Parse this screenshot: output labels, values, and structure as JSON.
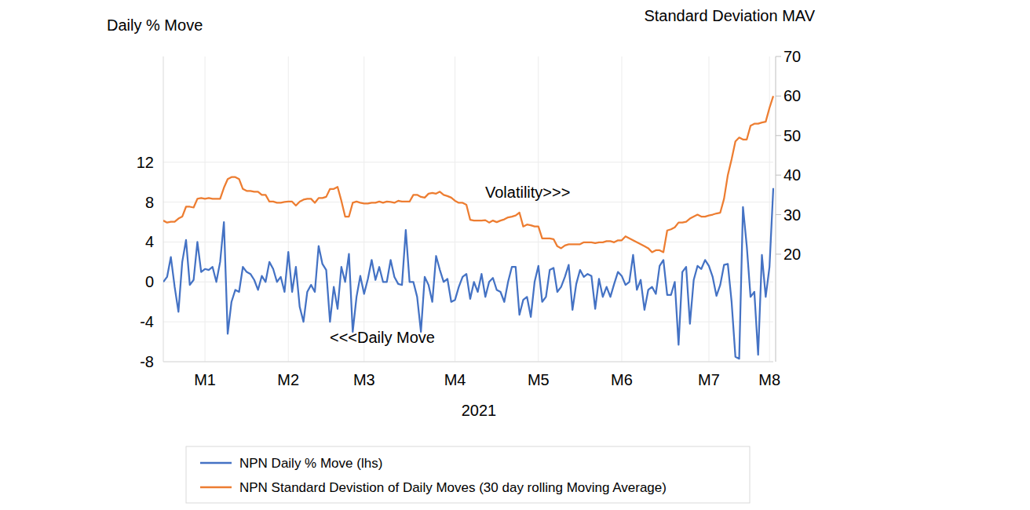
{
  "chart_data": {
    "type": "line",
    "y_label": "Daily % Move",
    "y2_label": "Standard Deviation MAV",
    "x_label": "2021",
    "annotations": [
      {
        "text": "Volatility>>>"
      },
      {
        "text": "<<<Daily Move"
      }
    ],
    "categories": [
      null,
      null,
      null,
      null,
      null,
      null,
      null,
      null,
      null,
      null,
      null,
      "M1",
      null,
      null,
      null,
      null,
      null,
      null,
      null,
      null,
      null,
      null,
      null,
      null,
      null,
      null,
      null,
      null,
      null,
      null,
      null,
      null,
      null,
      "M2",
      null,
      null,
      null,
      null,
      null,
      null,
      null,
      null,
      null,
      null,
      null,
      null,
      null,
      null,
      null,
      null,
      null,
      null,
      null,
      "M3",
      null,
      null,
      null,
      null,
      null,
      null,
      null,
      null,
      null,
      null,
      null,
      null,
      null,
      null,
      null,
      null,
      null,
      null,
      null,
      null,
      null,
      null,
      null,
      "M4",
      null,
      null,
      null,
      null,
      null,
      null,
      null,
      null,
      null,
      null,
      null,
      null,
      null,
      null,
      null,
      null,
      null,
      null,
      null,
      null,
      null,
      "M5",
      null,
      null,
      null,
      null,
      null,
      null,
      null,
      null,
      null,
      null,
      null,
      null,
      null,
      null,
      null,
      null,
      null,
      null,
      null,
      null,
      null,
      "M6",
      null,
      null,
      null,
      null,
      null,
      null,
      null,
      null,
      null,
      null,
      null,
      null,
      null,
      null,
      null,
      null,
      null,
      null,
      null,
      null,
      null,
      null,
      "M7",
      null,
      null,
      null,
      null,
      null,
      null,
      null,
      null,
      null,
      null,
      null,
      null,
      null,
      null,
      null,
      "M8",
      null
    ],
    "series": [
      {
        "name": "NPN Daily % Move (lhs)",
        "color": "#4472c4",
        "values": [
          0,
          0.5,
          2.5,
          -0.5,
          -3,
          2,
          4.2,
          -0.3,
          0.2,
          4,
          1,
          1.3,
          1.2,
          1.5,
          0,
          2,
          6,
          -5.2,
          -2,
          -0.8,
          -1,
          1.5,
          1,
          0.8,
          0.2,
          -0.8,
          0.6,
          0,
          2,
          1.3,
          0,
          0.5,
          -1,
          3,
          -1,
          1.5,
          -2.5,
          -4,
          -1,
          -0.3,
          -1,
          3.6,
          1.8,
          1.2,
          -4,
          -0.5,
          -2.7,
          1.5,
          0,
          2.8,
          -5,
          -1.5,
          0.6,
          -1.2,
          0.3,
          2.2,
          0.2,
          1.5,
          0,
          0,
          2.2,
          0.5,
          -0.2,
          -0.3,
          5.2,
          0,
          0,
          -1.5,
          -5,
          0.5,
          -0.3,
          -2,
          2.6,
          1.2,
          0,
          0.3,
          -2,
          -1.8,
          -0.5,
          0.5,
          0.8,
          -1.7,
          0,
          -1,
          0.8,
          -1.5,
          0,
          0.4,
          -0.8,
          -1,
          -2,
          0,
          1.5,
          1.5,
          -3.3,
          -1.8,
          -1.5,
          -3.5,
          0,
          1.6,
          -2,
          -1.5,
          1.2,
          1.4,
          -1,
          -0.5,
          0.5,
          1.7,
          -2.8,
          -0.2,
          1.2,
          0.5,
          0.8,
          0.6,
          -2.7,
          0.3,
          -1.5,
          -0.5,
          -1.5,
          -0.2,
          1,
          0.6,
          -0.3,
          0,
          2.7,
          -0.8,
          0.2,
          -2.8,
          -0.8,
          -0.5,
          -1.2,
          1.6,
          2.2,
          -1.3,
          -1.3,
          0,
          -6.3,
          1,
          1.5,
          -4.2,
          0.2,
          1.6,
          1.3,
          2.2,
          1.6,
          0.5,
          -1.4,
          -0.3,
          1.7,
          1.8,
          -2,
          -7.5,
          -7.7,
          7.5,
          3.6,
          -1.5,
          -1,
          -7.3,
          2.7,
          -1.5,
          1.5,
          9.4
        ]
      },
      {
        "name": "NPN Standard Devistion of Daily Moves (30 day rolling Moving Average)",
        "color": "#ed7d31",
        "axis": "y2",
        "values": [
          28.5,
          28,
          28.2,
          28.2,
          29,
          29.5,
          32,
          32,
          31.8,
          34,
          34.2,
          34,
          34.2,
          34,
          34,
          34,
          36.8,
          39,
          39.5,
          39.5,
          39,
          36.5,
          36,
          36,
          35.8,
          35.8,
          35,
          35,
          33.3,
          33.3,
          33,
          33,
          33.2,
          33.3,
          33.3,
          32.3,
          33.3,
          33.8,
          34,
          34,
          33,
          34.2,
          34.2,
          34.5,
          36.5,
          36.5,
          37,
          33.5,
          29.5,
          29.5,
          33,
          33.3,
          33,
          32.8,
          32.8,
          33,
          33,
          33.3,
          33,
          33.3,
          33.2,
          33,
          33.5,
          33.3,
          33.3,
          33.3,
          35,
          35,
          34.5,
          34.3,
          35.3,
          35.5,
          35.3,
          35.8,
          35,
          34.7,
          34.3,
          33.5,
          33,
          33,
          32.5,
          28.7,
          28.5,
          28.5,
          28.5,
          28.6,
          28,
          28.5,
          28.1,
          28.5,
          28.8,
          29.3,
          29.5,
          29.8,
          30.5,
          27,
          27.5,
          27.3,
          27,
          27,
          24,
          24,
          24,
          23.8,
          22,
          21.5,
          22.2,
          22.5,
          22.5,
          22.5,
          22.5,
          23,
          23,
          23,
          22.8,
          23,
          23,
          23.3,
          23.3,
          23,
          23.5,
          23.5,
          24.5,
          24,
          23.5,
          23,
          22.5,
          22,
          21.5,
          20.5,
          21,
          21,
          20.5,
          26,
          26.3,
          26.8,
          28,
          28,
          28.2,
          29,
          29.5,
          30,
          29.5,
          29.5,
          29.8,
          30,
          30.3,
          30.5,
          34,
          40,
          44,
          48.5,
          49.5,
          49,
          49,
          52.5,
          53,
          53,
          53.3,
          53.5,
          57,
          60
        ]
      }
    ],
    "ylim": [
      -8,
      22.6
    ],
    "yticks": [
      -8,
      -4,
      0,
      4,
      8,
      12
    ],
    "y2lim": [
      -7.2,
      70
    ],
    "y2ticks": [
      20,
      30,
      40,
      50,
      60,
      70
    ],
    "grid": true,
    "legend": "bottom"
  }
}
